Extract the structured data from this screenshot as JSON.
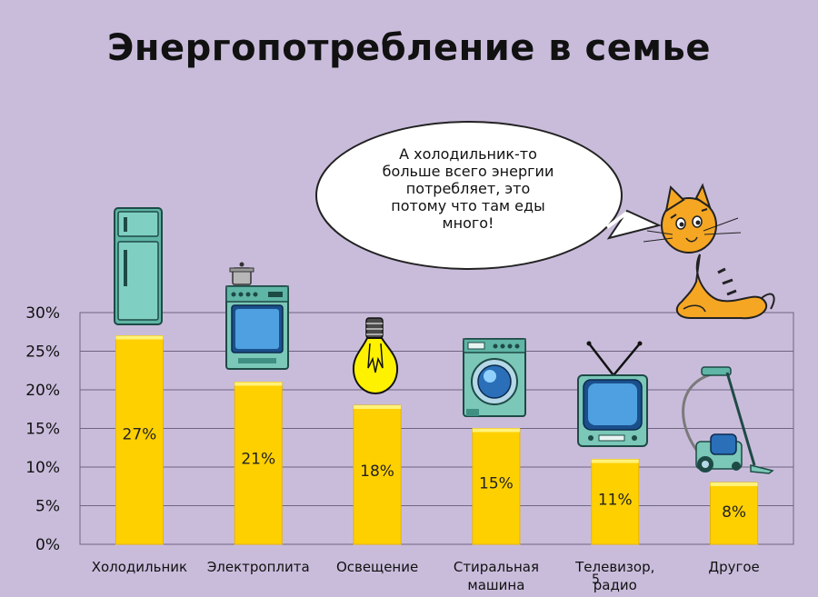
{
  "title": "Энергопотребление в семье",
  "speech_bubble": "А холодильник-то\nбольше всего энергии\nпотребляет, это\nпотому что там еды\nмного!",
  "page_number": "5",
  "colors": {
    "background": "#c9bcdb",
    "bar": "#ffd000",
    "bar_edge": "#e7b400",
    "grid": "#6e6580"
  },
  "chart_data": {
    "type": "bar",
    "title": "Энергопотребление в семье",
    "categories": [
      "Холодильник",
      "Электроплита",
      "Освещение",
      "Стиральная машина",
      "Телевизор, радио",
      "Другое"
    ],
    "category_lines": [
      [
        "Холодильник"
      ],
      [
        "Электроплита"
      ],
      [
        "Освещение"
      ],
      [
        "Стиральная",
        "машина"
      ],
      [
        "Телевизор,",
        "радио"
      ],
      [
        "Другое"
      ]
    ],
    "values": [
      27,
      21,
      18,
      15,
      11,
      8
    ],
    "data_labels": [
      "27%",
      "21%",
      "18%",
      "15%",
      "11%",
      "8%"
    ],
    "ylim": [
      0,
      30
    ],
    "yticks": [
      0,
      5,
      10,
      15,
      20,
      25,
      30
    ],
    "ytick_labels": [
      "0%",
      "5%",
      "10%",
      "15%",
      "20%",
      "25%",
      "30%"
    ],
    "grid": true,
    "icons": [
      "fridge-icon",
      "stove-icon",
      "light-bulb-icon",
      "washing-machine-icon",
      "tv-icon",
      "vacuum-cleaner-icon"
    ]
  }
}
